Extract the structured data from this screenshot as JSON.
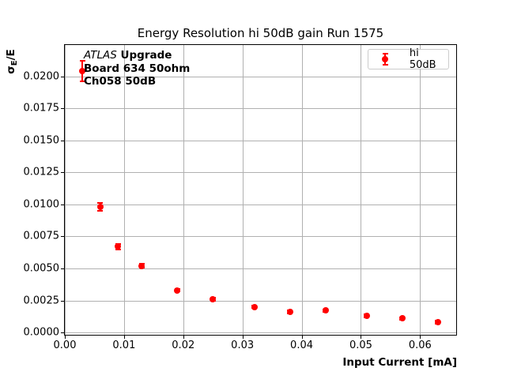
{
  "annotation": {
    "line1_experiment": "ATLAS",
    "line1_rest": "Upgrade",
    "line2": "Board 634 50ohm",
    "line3": "Ch058 50dB"
  },
  "axes": {
    "y_label_sigma": "σ",
    "y_label_sub": "E",
    "y_label_rest": "/E"
  },
  "legend": {
    "label": "hi 50dB"
  },
  "colors": {
    "series": "#ff0000",
    "grid": "#b0b0b0",
    "legend_border": "#cccccc",
    "text": "#000000"
  },
  "chart_data": {
    "type": "scatter",
    "title": "Energy Resolution hi 50dB gain Run 1575",
    "xlabel": "Input Current [mA]",
    "ylabel": "σE/E",
    "grid": true,
    "legend_position": "upper right",
    "xlim": [
      0.0,
      0.0661
    ],
    "ylim": [
      -0.00018,
      0.02244
    ],
    "x_ticks": [
      0.0,
      0.01,
      0.02,
      0.03,
      0.04,
      0.05,
      0.06
    ],
    "x_tick_labels": [
      "0.00",
      "0.01",
      "0.02",
      "0.03",
      "0.04",
      "0.05",
      "0.06"
    ],
    "y_ticks": [
      0.0,
      0.0025,
      0.005,
      0.0075,
      0.01,
      0.0125,
      0.015,
      0.0175,
      0.02
    ],
    "y_tick_labels": [
      "0.0000",
      "0.0025",
      "0.0050",
      "0.0075",
      "0.0100",
      "0.0125",
      "0.0150",
      "0.0175",
      "0.0200"
    ],
    "series": [
      {
        "name": "hi 50dB",
        "color": "#ff0000",
        "marker": "circle",
        "x": [
          0.003,
          0.006,
          0.009,
          0.013,
          0.019,
          0.025,
          0.032,
          0.038,
          0.044,
          0.051,
          0.057,
          0.063
        ],
        "y": [
          0.0204,
          0.0098,
          0.0067,
          0.0052,
          0.0033,
          0.0026,
          0.002,
          0.0016,
          0.0017,
          0.0013,
          0.0011,
          0.0008
        ],
        "yerr": [
          0.0008,
          0.0003,
          0.0002,
          0.00015,
          0.0001,
          0.0001,
          0.0001,
          0.0001,
          0.0001,
          0.0001,
          0.0001,
          0.0001
        ]
      }
    ]
  }
}
